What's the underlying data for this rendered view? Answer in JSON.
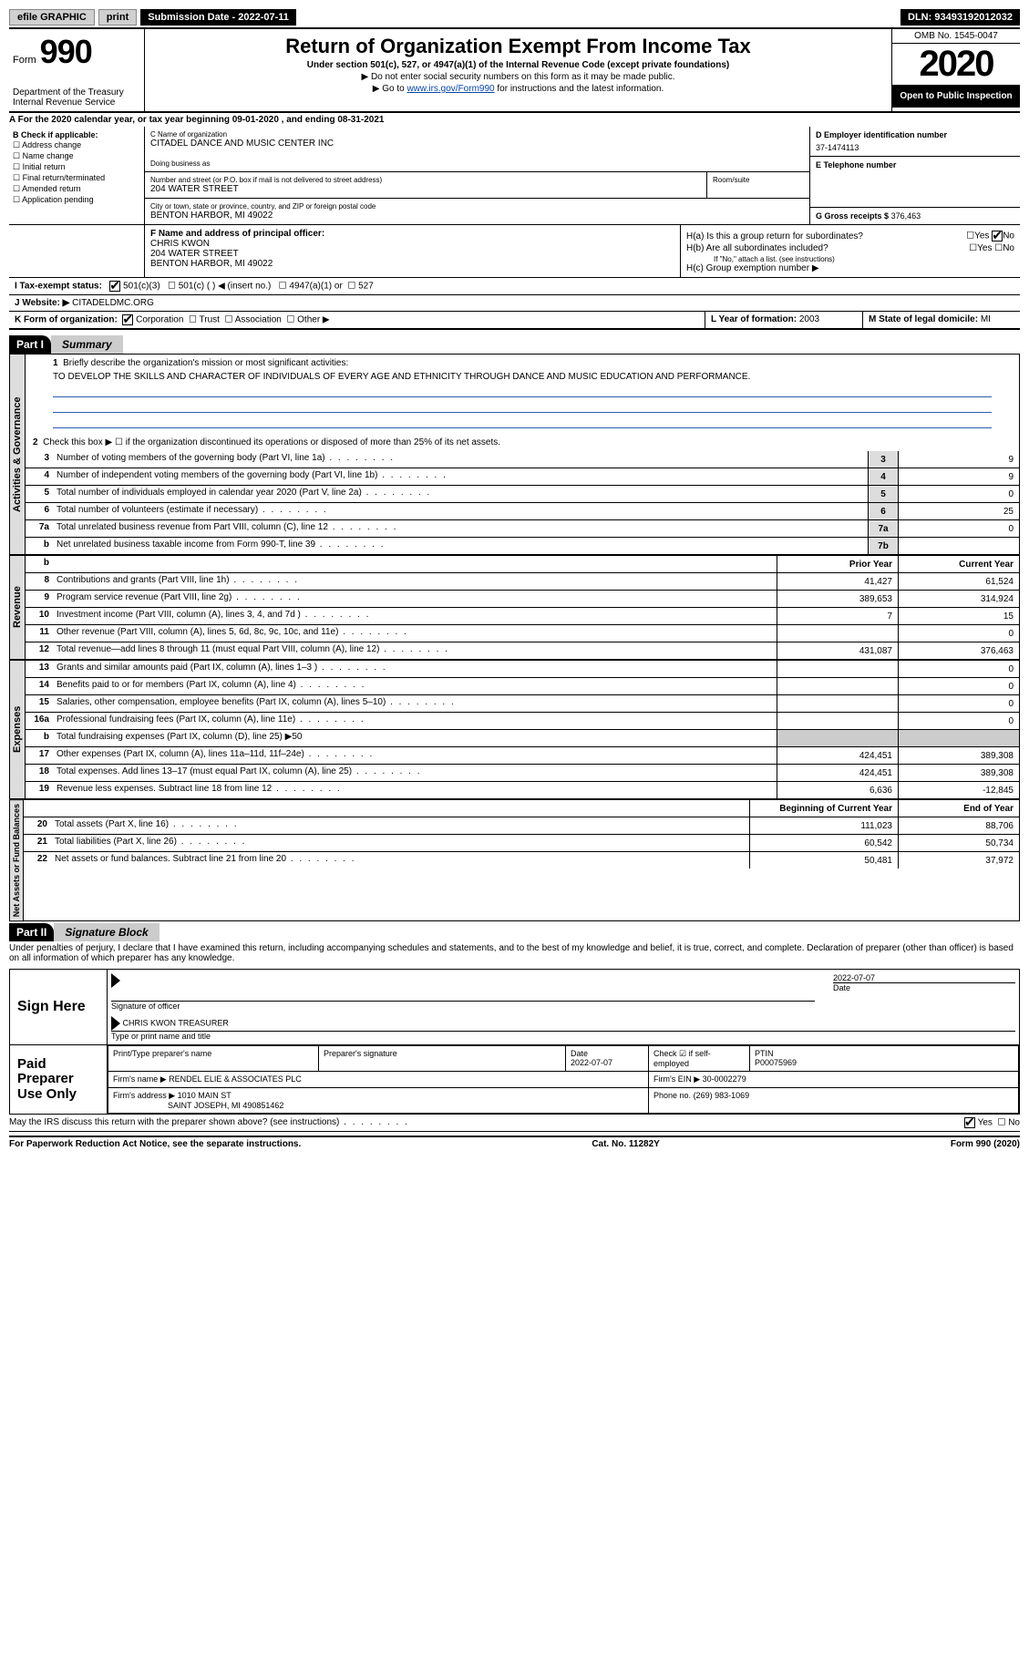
{
  "topbar": {
    "efile": "efile GRAPHIC",
    "print": "print",
    "submission": "Submission Date - 2022-07-11",
    "dln": "DLN: 93493192012032"
  },
  "header": {
    "form_word": "Form",
    "form_num": "990",
    "dept": "Department of the Treasury\nInternal Revenue Service",
    "title": "Return of Organization Exempt From Income Tax",
    "subtitle": "Under section 501(c), 527, or 4947(a)(1) of the Internal Revenue Code (except private foundations)",
    "note1": "▶ Do not enter social security numbers on this form as it may be made public.",
    "note2_pre": "▶ Go to ",
    "note2_link": "www.irs.gov/Form990",
    "note2_post": " for instructions and the latest information.",
    "omb": "OMB No. 1545-0047",
    "year": "2020",
    "open": "Open to Public Inspection"
  },
  "period": "For the 2020 calendar year, or tax year beginning 09-01-2020   , and ending 08-31-2021",
  "box_b": {
    "title": "B Check if applicable:",
    "opts": [
      "Address change",
      "Name change",
      "Initial return",
      "Final return/terminated",
      "Amended return",
      "Application pending"
    ]
  },
  "box_c": {
    "label": "C Name of organization",
    "name": "CITADEL DANCE AND MUSIC CENTER INC",
    "dba_label": "Doing business as",
    "addr_label": "Number and street (or P.O. box if mail is not delivered to street address)",
    "room_label": "Room/suite",
    "addr": "204 WATER STREET",
    "city_label": "City or town, state or province, country, and ZIP or foreign postal code",
    "city": "BENTON HARBOR, MI  49022"
  },
  "box_d": {
    "label": "D Employer identification number",
    "val": "37-1474113"
  },
  "box_e": {
    "label": "E Telephone number"
  },
  "box_g": {
    "label": "G Gross receipts $",
    "val": "376,463"
  },
  "box_f": {
    "label": "F Name and address of principal officer:",
    "name": "CHRIS KWON",
    "addr1": "204 WATER STREET",
    "addr2": "BENTON HARBOR, MI  49022"
  },
  "box_h": {
    "a_label": "H(a)  Is this a group return for subordinates?",
    "a_yes": "Yes",
    "a_no": "No",
    "b_label": "H(b)  Are all subordinates included?",
    "b_yes": "Yes",
    "b_no": "No",
    "b_note": "If \"No,\" attach a list. (see instructions)",
    "c_label": "H(c)  Group exemption number ▶"
  },
  "box_i": {
    "label": "I   Tax-exempt status:",
    "o1": "501(c)(3)",
    "o2": "501(c) (  ) ◀ (insert no.)",
    "o3": "4947(a)(1) or",
    "o4": "527"
  },
  "box_j": {
    "label": "J   Website: ▶",
    "val": "CITADELDMC.ORG"
  },
  "box_k": {
    "label": "K Form of organization:",
    "o1": "Corporation",
    "o2": "Trust",
    "o3": "Association",
    "o4": "Other ▶"
  },
  "box_l": {
    "label": "L Year of formation:",
    "val": "2003"
  },
  "box_m": {
    "label": "M State of legal domicile:",
    "val": "MI"
  },
  "part1": {
    "num": "Part I",
    "title": "Summary"
  },
  "summary": {
    "l1_label": "Briefly describe the organization's mission or most significant activities:",
    "mission": "TO DEVELOP THE SKILLS AND CHARACTER OF INDIVIDUALS OF EVERY AGE AND ETHNICITY THROUGH DANCE AND MUSIC EDUCATION AND PERFORMANCE.",
    "l2": "Check this box ▶ ☐  if the organization discontinued its operations or disposed of more than 25% of its net assets.",
    "lines_gov": [
      {
        "n": "3",
        "t": "Number of voting members of the governing body (Part VI, line 1a)",
        "box": "3",
        "v": "9"
      },
      {
        "n": "4",
        "t": "Number of independent voting members of the governing body (Part VI, line 1b)",
        "box": "4",
        "v": "9"
      },
      {
        "n": "5",
        "t": "Total number of individuals employed in calendar year 2020 (Part V, line 2a)",
        "box": "5",
        "v": "0"
      },
      {
        "n": "6",
        "t": "Total number of volunteers (estimate if necessary)",
        "box": "6",
        "v": "25"
      },
      {
        "n": "7a",
        "t": "Total unrelated business revenue from Part VIII, column (C), line 12",
        "box": "7a",
        "v": "0"
      },
      {
        "n": "b",
        "t": "Net unrelated business taxable income from Form 990-T, line 39",
        "box": "7b",
        "v": ""
      }
    ],
    "col_prior": "Prior Year",
    "col_current": "Current Year",
    "rev": [
      {
        "n": "8",
        "t": "Contributions and grants (Part VIII, line 1h)",
        "p": "41,427",
        "c": "61,524"
      },
      {
        "n": "9",
        "t": "Program service revenue (Part VIII, line 2g)",
        "p": "389,653",
        "c": "314,924"
      },
      {
        "n": "10",
        "t": "Investment income (Part VIII, column (A), lines 3, 4, and 7d )",
        "p": "7",
        "c": "15"
      },
      {
        "n": "11",
        "t": "Other revenue (Part VIII, column (A), lines 5, 6d, 8c, 9c, 10c, and 11e)",
        "p": "",
        "c": "0"
      },
      {
        "n": "12",
        "t": "Total revenue—add lines 8 through 11 (must equal Part VIII, column (A), line 12)",
        "p": "431,087",
        "c": "376,463"
      }
    ],
    "exp": [
      {
        "n": "13",
        "t": "Grants and similar amounts paid (Part IX, column (A), lines 1–3 )",
        "p": "",
        "c": "0"
      },
      {
        "n": "14",
        "t": "Benefits paid to or for members (Part IX, column (A), line 4)",
        "p": "",
        "c": "0"
      },
      {
        "n": "15",
        "t": "Salaries, other compensation, employee benefits (Part IX, column (A), lines 5–10)",
        "p": "",
        "c": "0"
      },
      {
        "n": "16a",
        "t": "Professional fundraising fees (Part IX, column (A), line 11e)",
        "p": "",
        "c": "0"
      },
      {
        "n": "b",
        "t": "Total fundraising expenses (Part IX, column (D), line 25) ▶50",
        "grey": true
      },
      {
        "n": "17",
        "t": "Other expenses (Part IX, column (A), lines 11a–11d, 11f–24e)",
        "p": "424,451",
        "c": "389,308"
      },
      {
        "n": "18",
        "t": "Total expenses. Add lines 13–17 (must equal Part IX, column (A), line 25)",
        "p": "424,451",
        "c": "389,308"
      },
      {
        "n": "19",
        "t": "Revenue less expenses. Subtract line 18 from line 12",
        "p": "6,636",
        "c": "-12,845"
      }
    ],
    "col_begin": "Beginning of Current Year",
    "col_end": "End of Year",
    "net": [
      {
        "n": "20",
        "t": "Total assets (Part X, line 16)",
        "p": "111,023",
        "c": "88,706"
      },
      {
        "n": "21",
        "t": "Total liabilities (Part X, line 26)",
        "p": "60,542",
        "c": "50,734"
      },
      {
        "n": "22",
        "t": "Net assets or fund balances. Subtract line 21 from line 20",
        "p": "50,481",
        "c": "37,972"
      }
    ],
    "side_gov": "Activities & Governance",
    "side_rev": "Revenue",
    "side_exp": "Expenses",
    "side_net": "Net Assets or Fund Balances"
  },
  "part2": {
    "num": "Part II",
    "title": "Signature Block"
  },
  "sig": {
    "penalty": "Under penalties of perjury, I declare that I have examined this return, including accompanying schedules and statements, and to the best of my knowledge and belief, it is true, correct, and complete. Declaration of preparer (other than officer) is based on all information of which preparer has any knowledge.",
    "sign_here": "Sign Here",
    "sig_officer": "Signature of officer",
    "date": "Date",
    "date_val": "2022-07-07",
    "name_title_label": "Type or print name and title",
    "name_title": "CHRIS KWON  TREASURER",
    "paid": "Paid Preparer Use Only",
    "h_name": "Print/Type preparer's name",
    "h_sig": "Preparer's signature",
    "h_date": "Date",
    "h_date_val": "2022-07-07",
    "h_check": "Check ☑ if self-employed",
    "h_ptin": "PTIN",
    "ptin_val": "P00075969",
    "firm_name_l": "Firm's name    ▶",
    "firm_name": "RENDEL ELIE & ASSOCIATES PLC",
    "firm_ein_l": "Firm's EIN ▶",
    "firm_ein": "30-0002279",
    "firm_addr_l": "Firm's address ▶",
    "firm_addr": "1010 MAIN ST",
    "firm_city": "SAINT JOSEPH, MI  490851462",
    "firm_phone_l": "Phone no.",
    "firm_phone": "(269) 983-1069",
    "discuss": "May the IRS discuss this return with the preparer shown above? (see instructions)",
    "yes": "Yes",
    "no": "No"
  },
  "footer": {
    "left": "For Paperwork Reduction Act Notice, see the separate instructions.",
    "mid": "Cat. No. 11282Y",
    "right": "Form 990 (2020)"
  }
}
